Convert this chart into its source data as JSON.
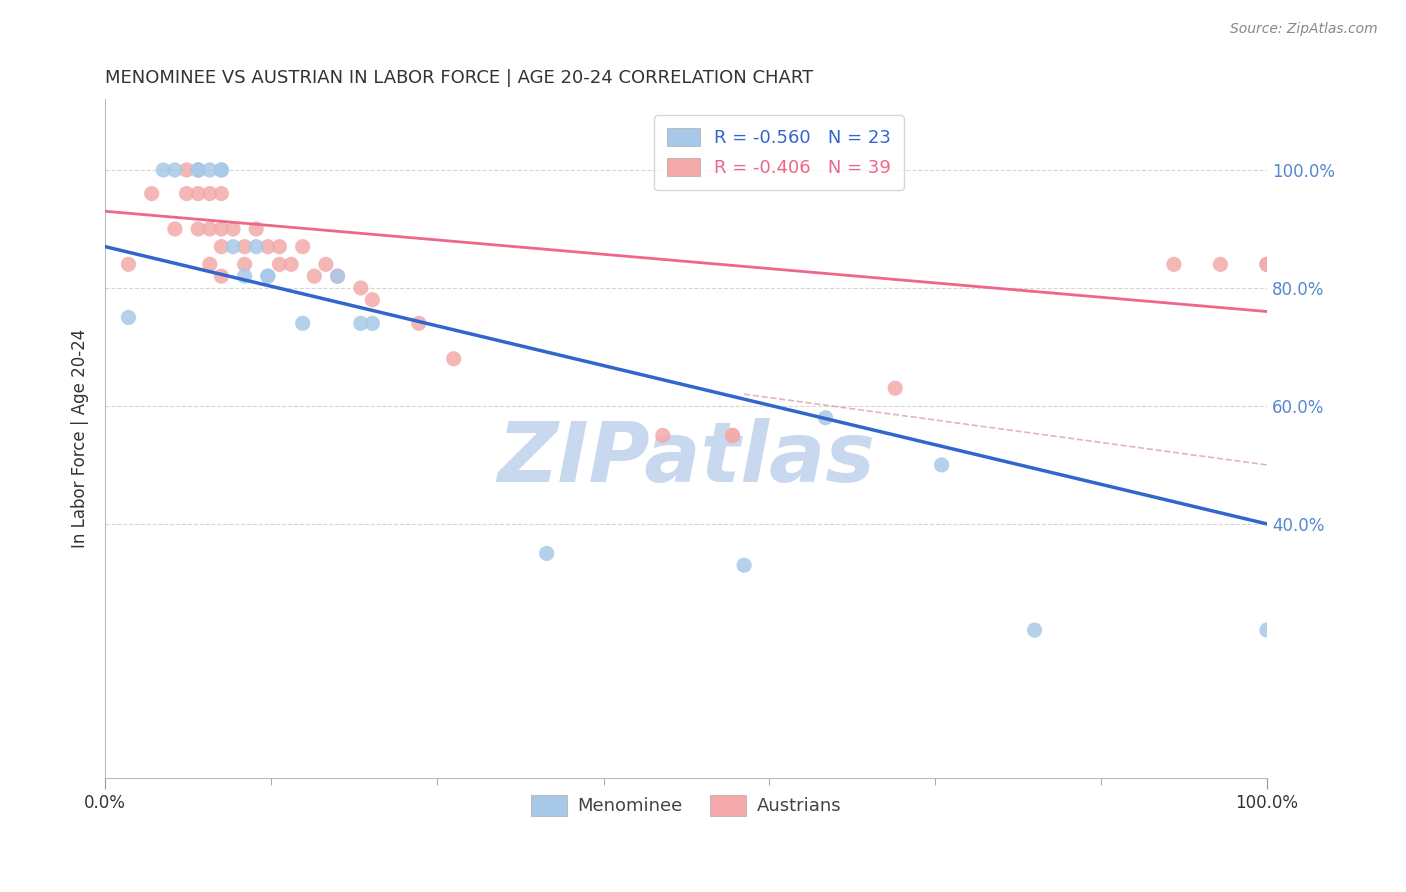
{
  "title": "MENOMINEE VS AUSTRIAN IN LABOR FORCE | AGE 20-24 CORRELATION CHART",
  "source": "Source: ZipAtlas.com",
  "ylabel": "In Labor Force | Age 20-24",
  "watermark": "ZIPatlas",
  "blue_scatter_x": [
    0.02,
    0.05,
    0.06,
    0.08,
    0.08,
    0.09,
    0.1,
    0.1,
    0.11,
    0.12,
    0.13,
    0.14,
    0.14,
    0.17,
    0.2,
    0.22,
    0.23,
    0.38,
    0.55,
    0.62,
    0.72,
    0.8,
    1.0
  ],
  "blue_scatter_y": [
    0.75,
    1.0,
    1.0,
    1.0,
    1.0,
    1.0,
    1.0,
    1.0,
    0.87,
    0.82,
    0.87,
    0.82,
    0.82,
    0.74,
    0.82,
    0.74,
    0.74,
    0.35,
    0.33,
    0.58,
    0.5,
    0.22,
    0.22
  ],
  "pink_scatter_x": [
    0.02,
    0.04,
    0.06,
    0.07,
    0.07,
    0.08,
    0.08,
    0.08,
    0.09,
    0.09,
    0.09,
    0.1,
    0.1,
    0.1,
    0.1,
    0.11,
    0.12,
    0.12,
    0.13,
    0.14,
    0.15,
    0.15,
    0.16,
    0.17,
    0.18,
    0.19,
    0.2,
    0.22,
    0.23,
    0.27,
    0.3,
    0.48,
    0.54,
    0.54,
    0.68,
    0.92,
    0.96,
    1.0,
    1.0
  ],
  "pink_scatter_y": [
    0.84,
    0.96,
    0.9,
    1.0,
    0.96,
    1.0,
    0.96,
    0.9,
    0.96,
    0.9,
    0.84,
    0.96,
    0.9,
    0.87,
    0.82,
    0.9,
    0.87,
    0.84,
    0.9,
    0.87,
    0.87,
    0.84,
    0.84,
    0.87,
    0.82,
    0.84,
    0.82,
    0.8,
    0.78,
    0.74,
    0.68,
    0.55,
    0.55,
    0.55,
    0.63,
    0.84,
    0.84,
    0.84,
    0.84
  ],
  "blue_line_x": [
    0.0,
    1.0
  ],
  "blue_line_y": [
    0.87,
    0.4
  ],
  "pink_line_x": [
    0.0,
    1.0
  ],
  "pink_line_y": [
    0.93,
    0.76
  ],
  "dashed_line_x": [
    0.55,
    1.0
  ],
  "dashed_line_y": [
    0.62,
    0.5
  ],
  "xlim": [
    0.0,
    1.0
  ],
  "ylim": [
    -0.03,
    1.12
  ],
  "yticks": [
    0.4,
    0.6,
    0.8,
    1.0
  ],
  "ytick_labels": [
    "40.0%",
    "60.0%",
    "80.0%",
    "100.0%"
  ],
  "xtick_labels_bottom": [
    "0.0%",
    "100.0%"
  ],
  "xticks_bottom": [
    0.0,
    1.0
  ],
  "xticks_minor": [
    0.143,
    0.286,
    0.429,
    0.571,
    0.714,
    0.857
  ],
  "scatter_size": 120,
  "blue_color": "#A8C8E8",
  "pink_color": "#F4AAAA",
  "blue_line_color": "#3366CC",
  "pink_line_color": "#EE6688",
  "dashed_line_color": "#EE6688",
  "title_color": "#333333",
  "source_color": "#888888",
  "axis_label_color": "#333333",
  "right_tick_color": "#5588CC",
  "background_color": "#FFFFFF",
  "watermark_color": "#C8D8EE",
  "grid_color": "#CCCCCC",
  "legend_blue_text": "R = -0.560   N = 23",
  "legend_pink_text": "R = -0.406   N = 39"
}
